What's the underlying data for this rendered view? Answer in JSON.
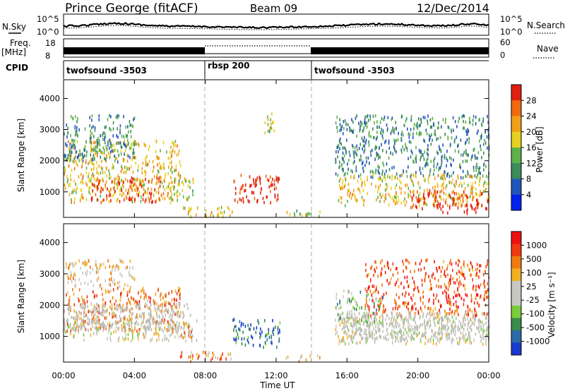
{
  "header": {
    "station": "Prince George (fitACF)",
    "beam": "Beam 09",
    "date": "12/Dec/2014"
  },
  "strip": {
    "nsky_label": "N.Sky",
    "nsky_ticks": [
      "10^5",
      "10^0"
    ],
    "nsearch_label": "N.Search",
    "freq_label": [
      "Freq.",
      "[MHz]"
    ],
    "freq_ticks": [
      "18",
      "8"
    ],
    "nave_label": "Nave",
    "nave_ticks": [
      "60",
      "0"
    ],
    "cpid_label": "CPID",
    "cpid_segments": [
      {
        "name": "twofsound -3503",
        "start_h": 0,
        "end_h": 8
      },
      {
        "name": "rbsp 200",
        "start_h": 8,
        "end_h": 14
      },
      {
        "name": "twofsound -3503",
        "start_h": 14,
        "end_h": 24
      }
    ]
  },
  "colors": {
    "power_scale": [
      "#0022ee",
      "#2255bb",
      "#3d8a5a",
      "#5eb04a",
      "#e6d020",
      "#f0a018",
      "#f06a10",
      "#e02010"
    ],
    "velocity_scale": [
      "#1a3ad0",
      "#2a6aa8",
      "#3a8a4a",
      "#7acc3a",
      "#c8c8c0",
      "#c8c8c0",
      "#f0b020",
      "#f07a10",
      "#f03a10",
      "#ee1010"
    ],
    "ground_scatter": "#bcbcb4"
  },
  "chart_data": [
    {
      "type": "heatmap",
      "name": "power",
      "ylabel": "Slant Range [km]",
      "yticks": [
        1000,
        2000,
        3000,
        4000
      ],
      "ylim": [
        180,
        4600
      ],
      "xlim_hours": [
        0,
        24
      ],
      "colorbar": {
        "label": "Power [dB]",
        "ticks": [
          "28",
          "24",
          "20",
          "16",
          "12",
          "8",
          "4"
        ],
        "range": [
          0,
          32
        ]
      },
      "regions": [
        {
          "t0": 0,
          "t1": 6.6,
          "r0": 700,
          "r1": 2700,
          "level": 0.6
        },
        {
          "t0": 1.5,
          "t1": 5.5,
          "r0": 700,
          "r1": 1500,
          "level": 0.9
        },
        {
          "t0": 0,
          "t1": 4,
          "r0": 2000,
          "r1": 3500,
          "level": 0.3
        },
        {
          "t0": 6,
          "t1": 7.3,
          "r0": 700,
          "r1": 1500,
          "level": 0.5
        },
        {
          "t0": 6.5,
          "t1": 9.5,
          "r0": 250,
          "r1": 550,
          "level": 0.6
        },
        {
          "t0": 9.5,
          "t1": 12.2,
          "r0": 700,
          "r1": 1600,
          "level": 0.95
        },
        {
          "t0": 11.3,
          "t1": 11.9,
          "r0": 2900,
          "r1": 3600,
          "level": 0.5
        },
        {
          "t0": 12.5,
          "t1": 14.5,
          "r0": 250,
          "r1": 450,
          "level": 0.5
        },
        {
          "t0": 15.3,
          "t1": 24,
          "r0": 1500,
          "r1": 3500,
          "level": 0.3
        },
        {
          "t0": 15.5,
          "t1": 24,
          "r0": 600,
          "r1": 1600,
          "level": 0.6
        },
        {
          "t0": 19.5,
          "t1": 24,
          "r0": 500,
          "r1": 1100,
          "level": 0.95
        },
        {
          "t0": 21,
          "t1": 23.5,
          "r0": 350,
          "r1": 650,
          "level": 0.98
        }
      ]
    },
    {
      "type": "heatmap",
      "name": "velocity",
      "ylabel": "Slant Range [km]",
      "xlabel": "Time UT",
      "xticks": [
        "00:00",
        "04:00",
        "08:00",
        "12:00",
        "16:00",
        "20:00",
        "00:00"
      ],
      "yticks": [
        1000,
        2000,
        3000,
        4000
      ],
      "ylim": [
        180,
        4600
      ],
      "xlim_hours": [
        0,
        24
      ],
      "colorbar": {
        "label": "Velocity [m s⁻¹]",
        "ticks": [
          "1000",
          "500",
          "100",
          "25",
          "-25",
          "-100",
          "-500",
          "-1000"
        ],
        "range": [
          -1200,
          1200
        ]
      },
      "regions": [
        {
          "t0": 0,
          "t1": 6.6,
          "r0": 1200,
          "r1": 2600,
          "level": 0.75
        },
        {
          "t0": 0,
          "t1": 4,
          "r0": 2600,
          "r1": 3500,
          "level": 0.6
        },
        {
          "t0": 0,
          "t1": 7,
          "r0": 900,
          "r1": 1500,
          "level": 0.5
        },
        {
          "t0": 6,
          "t1": 7.3,
          "r0": 1000,
          "r1": 1500,
          "level": 0.65
        },
        {
          "t0": 6.5,
          "t1": 9.5,
          "r0": 250,
          "r1": 550,
          "level": 0.7
        },
        {
          "t0": 9.5,
          "t1": 12.2,
          "r0": 700,
          "r1": 1600,
          "level": 0.15
        },
        {
          "t0": 12.5,
          "t1": 14.5,
          "r0": 250,
          "r1": 450,
          "level": 0.6
        },
        {
          "t0": 15.3,
          "t1": 24,
          "r0": 800,
          "r1": 1700,
          "level": 0.5
        },
        {
          "t0": 17,
          "t1": 24,
          "r0": 1700,
          "r1": 3500,
          "level": 0.85
        },
        {
          "t0": 15.3,
          "t1": 18,
          "r0": 1500,
          "r1": 2500,
          "level": 0.35
        }
      ]
    }
  ]
}
